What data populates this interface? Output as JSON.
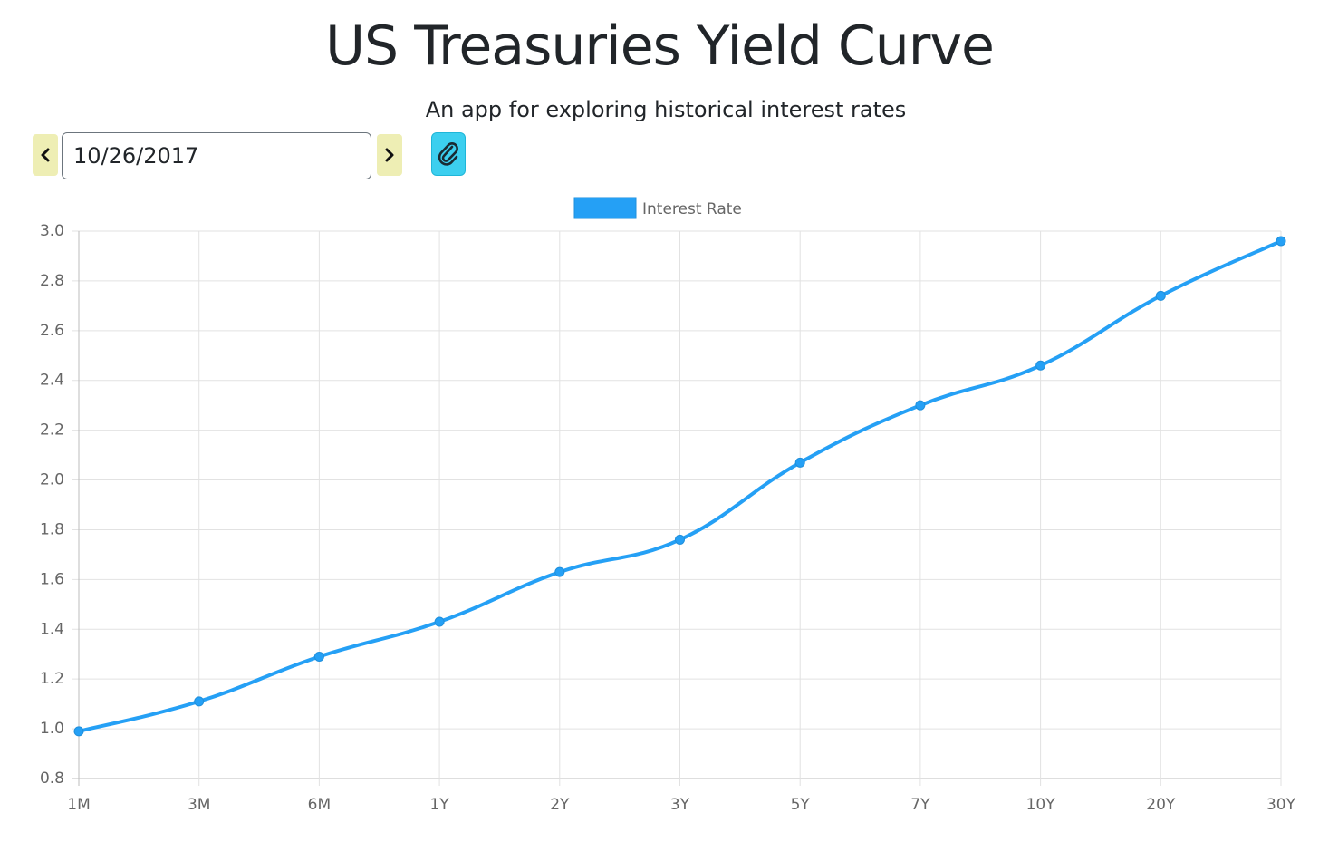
{
  "header": {
    "title": "US Treasuries Yield Curve",
    "subtitle": "An app for exploring historical interest rates"
  },
  "controls": {
    "prev_icon": "chevron-left-icon",
    "next_icon": "chevron-right-icon",
    "date_value": "10/26/2017",
    "clip_icon": "paperclip-icon"
  },
  "colors": {
    "series": "#25a0f5",
    "nav_button": "#eeeeb4",
    "clip_button": "#3ccfef"
  },
  "chart_data": {
    "type": "line",
    "title": "",
    "xlabel": "",
    "ylabel": "",
    "categories": [
      "1M",
      "3M",
      "6M",
      "1Y",
      "2Y",
      "3Y",
      "5Y",
      "7Y",
      "10Y",
      "20Y",
      "30Y"
    ],
    "series": [
      {
        "name": "Interest Rate",
        "values": [
          0.99,
          1.11,
          1.29,
          1.43,
          1.63,
          1.76,
          2.07,
          2.3,
          2.46,
          2.74,
          2.96
        ],
        "color": "#25a0f5"
      }
    ],
    "ylim": [
      0.8,
      3.0
    ],
    "yticks": [
      "0.8",
      "1.0",
      "1.2",
      "1.4",
      "1.6",
      "1.8",
      "2.0",
      "2.2",
      "2.4",
      "2.6",
      "2.8",
      "3.0"
    ],
    "grid": true,
    "legend": "top-center",
    "smooth": true
  }
}
